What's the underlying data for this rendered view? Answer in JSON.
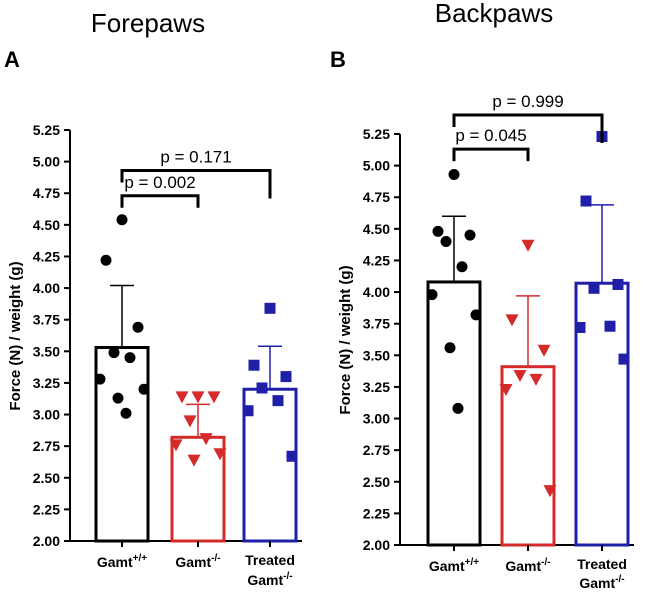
{
  "chart_data": [
    {
      "type": "bar",
      "panel": "A",
      "title": "Forepaws",
      "ylabel": "Force (N) / weight (g)",
      "ylim": [
        2.0,
        5.25
      ],
      "yticks": [
        "2.00",
        "2.25",
        "2.50",
        "2.75",
        "3.00",
        "3.25",
        "3.50",
        "3.75",
        "4.00",
        "4.25",
        "4.50",
        "4.75",
        "5.00",
        "5.25"
      ],
      "categories": [
        {
          "base": "Gamt",
          "sup": "+/+",
          "prefix": ""
        },
        {
          "base": "Gamt",
          "sup": "-/-",
          "prefix": ""
        },
        {
          "base": "Gamt",
          "sup": "-/-",
          "prefix": "Treated"
        }
      ],
      "series": [
        {
          "name": "Gamt+/+",
          "color": "#000000",
          "marker": "circle",
          "mean": 3.53,
          "sd": 0.49,
          "points": [
            4.54,
            4.22,
            3.69,
            3.49,
            3.45,
            3.28,
            3.2,
            3.13,
            3.01
          ]
        },
        {
          "name": "Gamt-/-",
          "color": "#d42a2a",
          "marker": "triangle-down",
          "mean": 2.82,
          "sd": 0.26,
          "points": [
            3.14,
            3.14,
            3.14,
            2.95,
            2.81,
            2.76,
            2.69,
            2.64
          ]
        },
        {
          "name": "Treated Gamt-/-",
          "color": "#1f1fa8",
          "marker": "square",
          "mean": 3.2,
          "sd": 0.34,
          "points": [
            3.84,
            3.39,
            3.3,
            3.21,
            3.11,
            3.03,
            2.67
          ]
        }
      ],
      "comparisons": [
        {
          "label": "p = 0.171",
          "from": 0,
          "to": 2,
          "y": 4.93
        },
        {
          "label": "p = 0.002",
          "from": 0,
          "to": 1,
          "y": 4.73
        }
      ]
    },
    {
      "type": "bar",
      "panel": "B",
      "title": "Backpaws",
      "ylabel": "Force (N) / weight (g)",
      "ylim": [
        2.0,
        5.25
      ],
      "yticks": [
        "2.00",
        "2.25",
        "2.50",
        "2.75",
        "3.00",
        "3.25",
        "3.50",
        "3.75",
        "4.00",
        "4.25",
        "4.50",
        "4.75",
        "5.00",
        "5.25"
      ],
      "categories": [
        {
          "base": "Gamt",
          "sup": "+/+",
          "prefix": ""
        },
        {
          "base": "Gamt",
          "sup": "-/-",
          "prefix": ""
        },
        {
          "base": "Gamt",
          "sup": "-/-",
          "prefix": "Treated"
        }
      ],
      "series": [
        {
          "name": "Gamt+/+",
          "color": "#000000",
          "marker": "circle",
          "mean": 4.08,
          "sd": 0.52,
          "points": [
            4.93,
            4.48,
            4.45,
            4.4,
            4.2,
            3.98,
            3.82,
            3.56,
            3.08
          ]
        },
        {
          "name": "Gamt-/-",
          "color": "#d42a2a",
          "marker": "triangle-down",
          "mean": 3.41,
          "sd": 0.56,
          "points": [
            4.37,
            3.78,
            3.54,
            3.34,
            3.31,
            3.23,
            2.43
          ]
        },
        {
          "name": "Treated Gamt-/-",
          "color": "#1f1fa8",
          "marker": "square",
          "mean": 4.07,
          "sd": 0.62,
          "points": [
            5.23,
            4.72,
            4.06,
            4.03,
            3.73,
            3.72,
            3.47
          ]
        }
      ],
      "comparisons": [
        {
          "label": "p = 0.999",
          "from": 0,
          "to": 2,
          "y": 5.4
        },
        {
          "label": "p = 0.045",
          "from": 0,
          "to": 1,
          "y": 5.13
        }
      ]
    }
  ]
}
